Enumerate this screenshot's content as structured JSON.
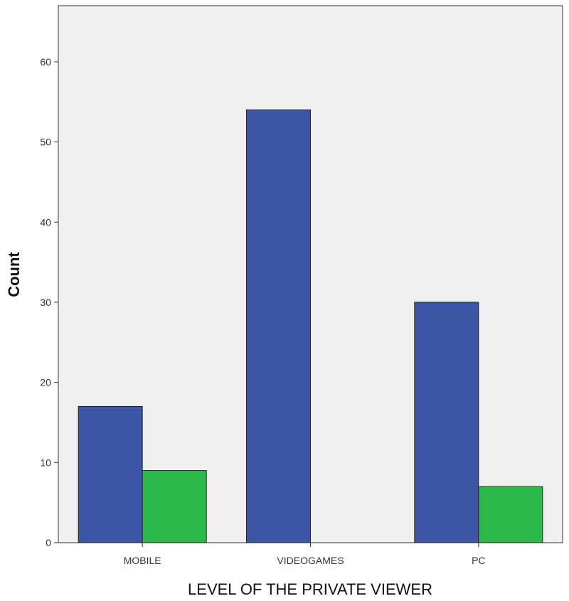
{
  "chart_data": {
    "type": "bar",
    "title": "",
    "xlabel": "LEVEL OF THE PRIVATE VIEWER",
    "ylabel": "Count",
    "categories": [
      "MOBILE",
      "VIDEOGAMES",
      "PC"
    ],
    "series": [
      {
        "values": [
          17,
          54,
          30
        ],
        "color": "#3c55a5"
      },
      {
        "values": [
          9,
          0,
          7
        ],
        "color": "#2db84a"
      }
    ],
    "ylim": [
      0,
      67
    ],
    "yticks": [
      0,
      10,
      20,
      30,
      40,
      50,
      60
    ],
    "grid": false,
    "legend": "none",
    "plot_background": "#f0f0f0"
  }
}
